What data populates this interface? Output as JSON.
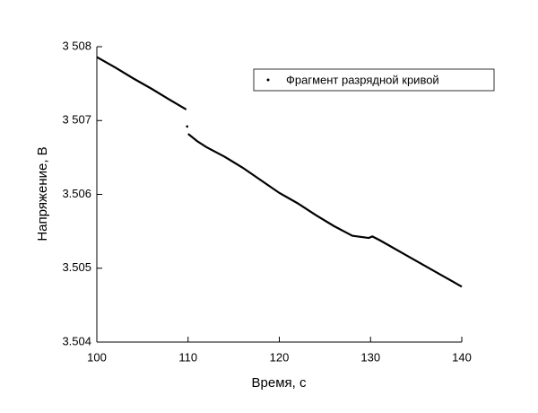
{
  "chart_data": {
    "type": "line",
    "xlabel": "Время, с",
    "ylabel": "Напряжение, В",
    "xlim": [
      100,
      140
    ],
    "xticks": [
      100,
      110,
      120,
      130,
      140
    ],
    "ylim": [
      3.504,
      3.508
    ],
    "yticks": [
      {
        "value": 3.508,
        "label": "3 508"
      },
      {
        "value": 3.507,
        "label": "3 507"
      },
      3.506,
      3.505,
      3.504
    ],
    "legend": "upper right",
    "series": [
      {
        "name": "Фрагмент разрядной кривой",
        "color": "#000000",
        "x": [
          100,
          102,
          104,
          106,
          108,
          109.8,
          109.85,
          109.9,
          109.95,
          110,
          110.3,
          111,
          112,
          114,
          116,
          118,
          120,
          122,
          124,
          126,
          128,
          129.8,
          130.2,
          131,
          132,
          134,
          136,
          138,
          140
        ],
        "values": [
          3.50786,
          3.50772,
          3.50757,
          3.50743,
          3.50728,
          3.50715,
          null,
          3.50692,
          null,
          3.50682,
          3.50679,
          3.50672,
          3.50664,
          3.50651,
          3.50636,
          3.50619,
          3.50602,
          3.50588,
          3.50572,
          3.50557,
          3.50544,
          3.50541,
          3.50543,
          3.50538,
          3.50531,
          3.50517,
          3.50503,
          3.50489,
          3.50475
        ]
      }
    ]
  }
}
